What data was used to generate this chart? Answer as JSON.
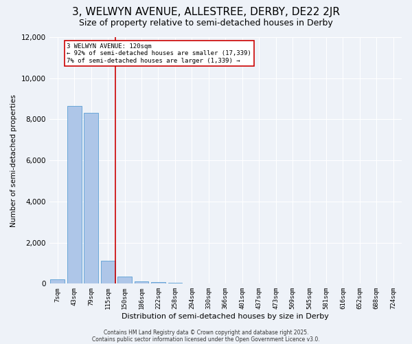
{
  "title": "3, WELWYN AVENUE, ALLESTREE, DERBY, DE22 2JR",
  "subtitle": "Size of property relative to semi-detached houses in Derby",
  "xlabel": "Distribution of semi-detached houses by size in Derby",
  "ylabel": "Number of semi-detached properties",
  "categories": [
    "7sqm",
    "43sqm",
    "79sqm",
    "115sqm",
    "150sqm",
    "186sqm",
    "222sqm",
    "258sqm",
    "294sqm",
    "330sqm",
    "366sqm",
    "401sqm",
    "437sqm",
    "473sqm",
    "509sqm",
    "545sqm",
    "581sqm",
    "616sqm",
    "652sqm",
    "688sqm",
    "724sqm"
  ],
  "values": [
    200,
    8650,
    8300,
    1100,
    350,
    120,
    80,
    30,
    0,
    0,
    0,
    0,
    0,
    0,
    0,
    0,
    0,
    0,
    0,
    0,
    0
  ],
  "bar_color": "#aec6e8",
  "bar_edge_color": "#5a9fd4",
  "vline_x_index": 3,
  "vline_color": "#cc0000",
  "ylim": [
    0,
    12000
  ],
  "annotation_text": "3 WELWYN AVENUE: 120sqm\n← 92% of semi-detached houses are smaller (17,339)\n7% of semi-detached houses are larger (1,339) →",
  "annotation_box_color": "#ffffff",
  "annotation_box_edge_color": "#cc0000",
  "footer_line1": "Contains HM Land Registry data © Crown copyright and database right 2025.",
  "footer_line2": "Contains public sector information licensed under the Open Government Licence v3.0.",
  "bg_color": "#eef2f8",
  "grid_color": "#ffffff",
  "title_fontsize": 11,
  "subtitle_fontsize": 9,
  "tick_fontsize": 6.5,
  "ylabel_fontsize": 7.5,
  "xlabel_fontsize": 8,
  "annotation_fontsize": 6.5,
  "footer_fontsize": 5.5
}
